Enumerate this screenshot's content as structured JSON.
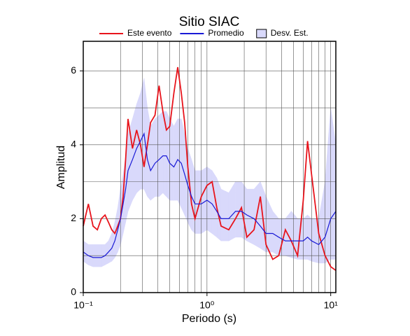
{
  "chart_data": {
    "type": "line",
    "title": "Sitio SIAC",
    "xlabel": "Periodo (s)",
    "ylabel": "Amplitud",
    "log_x": true,
    "grid": true,
    "xlim": [
      0.1,
      11
    ],
    "ylim": [
      0,
      6.8
    ],
    "xticks": [
      {
        "value": 0.1,
        "label": "10⁻¹"
      },
      {
        "value": 1,
        "label": "10⁰"
      },
      {
        "value": 10,
        "label": "10¹"
      }
    ],
    "xminor": [
      0.2,
      0.3,
      0.4,
      0.5,
      0.6,
      0.7,
      0.8,
      0.9,
      2,
      3,
      4,
      5,
      6,
      7,
      8,
      9
    ],
    "yticks": [
      0,
      2,
      4,
      6
    ],
    "yminor": [
      1,
      3,
      5
    ],
    "x": [
      0.1,
      0.11,
      0.12,
      0.13,
      0.14,
      0.15,
      0.16,
      0.17,
      0.18,
      0.19,
      0.2,
      0.21,
      0.22,
      0.23,
      0.25,
      0.27,
      0.29,
      0.31,
      0.33,
      0.35,
      0.38,
      0.41,
      0.44,
      0.47,
      0.5,
      0.54,
      0.58,
      0.62,
      0.66,
      0.7,
      0.75,
      0.8,
      0.9,
      1.0,
      1.1,
      1.2,
      1.3,
      1.5,
      1.7,
      1.9,
      2.1,
      2.4,
      2.7,
      3.0,
      3.4,
      3.8,
      4.3,
      4.8,
      5.4,
      6.0,
      6.5,
      7.0,
      8.0,
      9.0,
      10,
      11
    ],
    "band": {
      "name": "Desv. Est.",
      "color": "#d9d9fb",
      "lower": [
        0.85,
        0.75,
        0.7,
        0.7,
        0.7,
        0.75,
        0.8,
        0.85,
        0.95,
        1.1,
        1.3,
        1.6,
        1.9,
        2.2,
        2.5,
        2.7,
        2.8,
        2.8,
        2.6,
        2.5,
        2.6,
        2.6,
        2.7,
        2.6,
        2.5,
        2.5,
        2.5,
        2.3,
        2.1,
        1.9,
        1.7,
        1.6,
        1.6,
        1.7,
        1.6,
        1.5,
        1.4,
        1.4,
        1.5,
        1.5,
        1.4,
        1.3,
        1.2,
        1.1,
        1.1,
        1.0,
        1.0,
        0.95,
        0.9,
        0.9,
        0.9,
        0.85,
        0.8,
        0.8,
        0.9,
        0.9
      ],
      "upper": [
        1.4,
        1.3,
        1.3,
        1.3,
        1.3,
        1.3,
        1.4,
        1.6,
        1.9,
        2.3,
        2.8,
        3.2,
        3.7,
        4.3,
        4.7,
        5.1,
        5.4,
        5.8,
        5.0,
        4.5,
        4.7,
        4.8,
        4.9,
        4.9,
        4.7,
        4.5,
        4.7,
        4.7,
        4.3,
        3.9,
        3.6,
        3.3,
        3.3,
        3.4,
        3.3,
        3.1,
        2.8,
        2.7,
        3.0,
        3.0,
        2.8,
        2.8,
        3.0,
        2.6,
        2.2,
        2.0,
        2.0,
        2.2,
        2.0,
        2.0,
        2.1,
        2.0,
        2.0,
        3.0,
        5.0,
        4.0
      ]
    },
    "series": [
      {
        "name": "Este evento",
        "color": "#e8141c",
        "values": [
          1.8,
          2.4,
          1.8,
          1.7,
          2.0,
          2.1,
          1.9,
          1.7,
          1.6,
          1.8,
          2.0,
          2.6,
          3.6,
          4.7,
          3.9,
          4.4,
          4.0,
          3.4,
          4.0,
          4.6,
          4.8,
          5.6,
          4.9,
          4.4,
          4.5,
          5.4,
          6.1,
          5.4,
          4.6,
          3.4,
          2.4,
          2.0,
          2.6,
          2.9,
          3.0,
          2.3,
          1.8,
          1.7,
          2.0,
          2.3,
          1.5,
          1.7,
          2.6,
          1.3,
          0.9,
          1.0,
          1.7,
          1.4,
          1.0,
          2.5,
          4.1,
          3.2,
          1.6,
          1.0,
          0.7,
          0.6
        ]
      },
      {
        "name": "Promedio",
        "color": "#1a1ad6",
        "values": [
          1.1,
          1.0,
          0.95,
          0.95,
          0.95,
          1.0,
          1.1,
          1.2,
          1.4,
          1.7,
          2.0,
          2.4,
          2.8,
          3.3,
          3.6,
          3.9,
          4.1,
          4.3,
          3.6,
          3.3,
          3.5,
          3.6,
          3.7,
          3.7,
          3.5,
          3.4,
          3.6,
          3.5,
          3.2,
          2.9,
          2.6,
          2.4,
          2.4,
          2.5,
          2.4,
          2.2,
          2.0,
          2.0,
          2.2,
          2.2,
          2.1,
          2.0,
          1.8,
          1.6,
          1.6,
          1.5,
          1.4,
          1.4,
          1.4,
          1.4,
          1.5,
          1.4,
          1.3,
          1.5,
          2.0,
          2.2
        ]
      }
    ]
  }
}
